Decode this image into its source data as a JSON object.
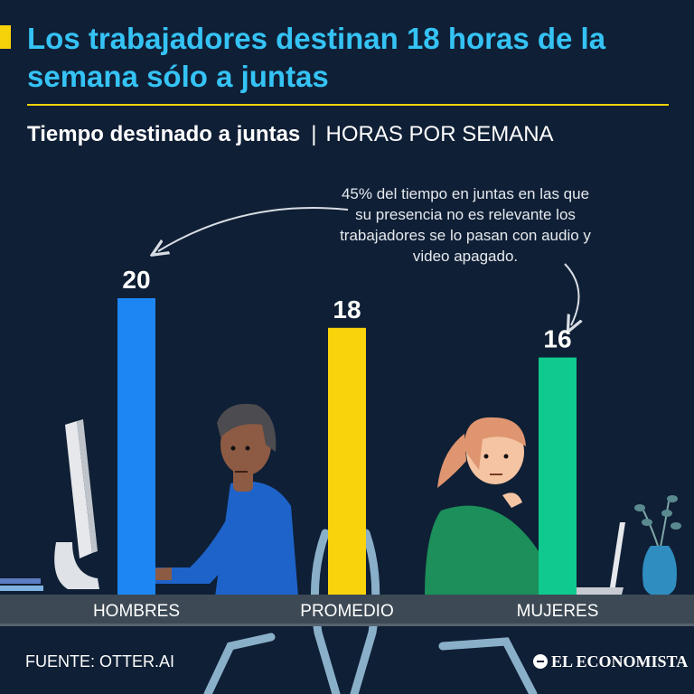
{
  "title": "Los trabajadores destinan 18 horas de la semana sólo a juntas",
  "subtitle": {
    "main": "Tiempo destinado a juntas",
    "separator": "|",
    "unit": "HORAS POR SEMANA"
  },
  "annotation": "45% del tiempo en juntas en las que su presencia no es relevante los trabajadores se lo pasan con audio y video apagado.",
  "source": "FUENTE: OTTER.AI",
  "brand": "EL ECONOMISTA",
  "colors": {
    "background": "#0f1f35",
    "title": "#35c3f5",
    "accent": "#f6d20a",
    "desk": "#3d4a55"
  },
  "chart_data": {
    "type": "bar",
    "title": "Tiempo destinado a juntas",
    "ylabel": "HORAS POR SEMANA",
    "categories": [
      "HOMBRES",
      "PROMEDIO",
      "MUJERES"
    ],
    "values": [
      20,
      18,
      16
    ],
    "data_labels": [
      "20",
      "18",
      "16"
    ],
    "bar_colors": [
      "#1d86f2",
      "#f9d30b",
      "#10c98e"
    ],
    "ylim": [
      0,
      20
    ],
    "grid": false
  }
}
